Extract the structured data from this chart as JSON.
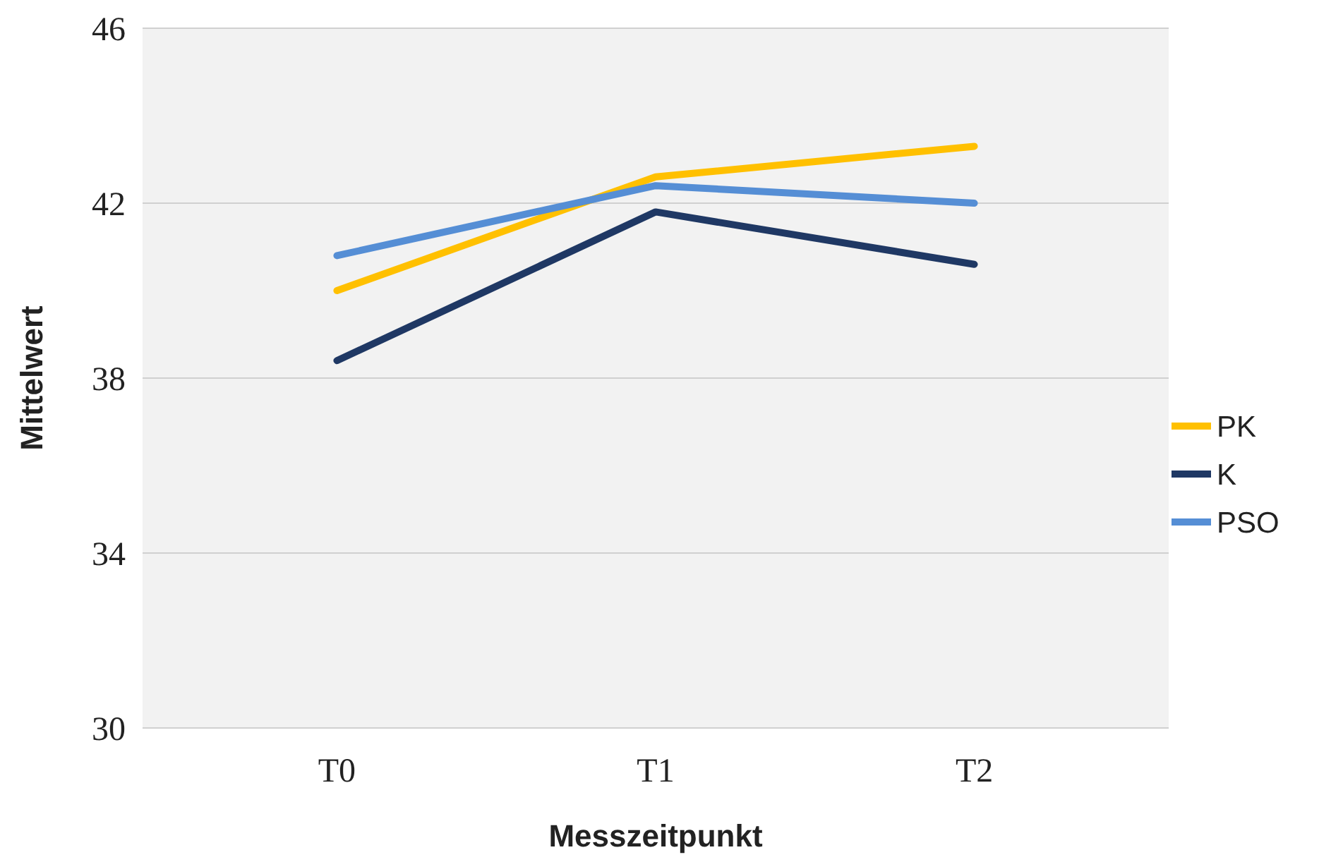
{
  "chart_data": {
    "type": "line",
    "xlabel": "Messzeitpunkt",
    "ylabel": "Mittelwert",
    "categories": [
      "T0",
      "T1",
      "T2"
    ],
    "series": [
      {
        "name": "PK",
        "color": "#ffc000",
        "values": [
          40.0,
          42.6,
          43.3
        ]
      },
      {
        "name": "K",
        "color": "#1f3864",
        "values": [
          38.4,
          41.8,
          40.6
        ]
      },
      {
        "name": "PSO",
        "color": "#558ed5",
        "values": [
          40.8,
          42.4,
          42.0
        ]
      }
    ],
    "ylim": [
      30,
      46
    ],
    "yticks": [
      30,
      34,
      38,
      42,
      46
    ],
    "grid": "y",
    "legend": "right",
    "marker": "none",
    "line_style": "solid"
  }
}
